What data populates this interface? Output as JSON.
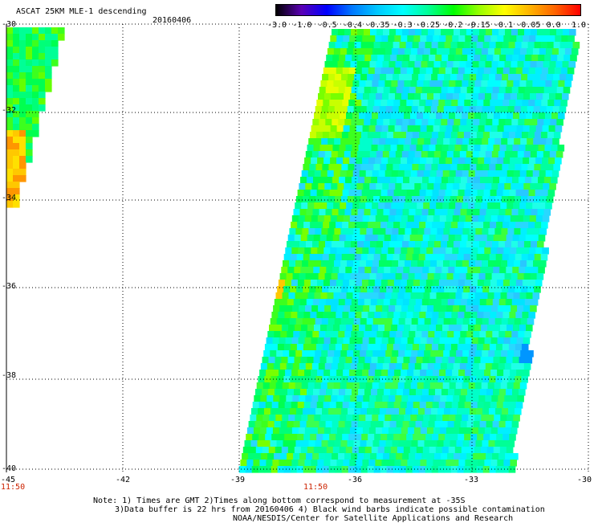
{
  "title": "ASCAT 25KM MLE-1 descending",
  "date": "20160406",
  "colorbar": {
    "labels": [
      "-3.0",
      "-1.0",
      "-0.5",
      "-0.4",
      "-0.35",
      "-0.3",
      "-0.25",
      "-0.2",
      "-0.15",
      "-0.1",
      "-0.05",
      "0.0",
      "1.0"
    ],
    "colors": [
      "#000000",
      "#5a00b4",
      "#0000ff",
      "#0078ff",
      "#00c8ff",
      "#00ffff",
      "#00ff96",
      "#00ff00",
      "#96ff00",
      "#ffff00",
      "#ffb400",
      "#ff6400",
      "#ff0000"
    ]
  },
  "map": {
    "lat_labels": [
      "-30",
      "-32",
      "-34",
      "-36",
      "-38",
      "-40"
    ],
    "lon_labels": [
      "-45",
      "-42",
      "-39",
      "-36",
      "-33",
      "-30"
    ],
    "time_labels": [
      "11:50",
      "11:50"
    ],
    "lon_range": [
      -45,
      -30
    ],
    "lat_range": [
      -40,
      -30
    ]
  },
  "notes": [
    "Note: 1) Times are GMT 2)Times along bottom correspond to measurement at -35S",
    "3)Data buffer is 22 hrs from 20160406 4) Black wind barbs indicate possible contamination",
    "NOAA/NESDIS/Center for Satellite Applications and Research"
  ],
  "colors": {
    "background": "#ffffff",
    "grid": "#000000",
    "time_label": "#cc2200"
  }
}
